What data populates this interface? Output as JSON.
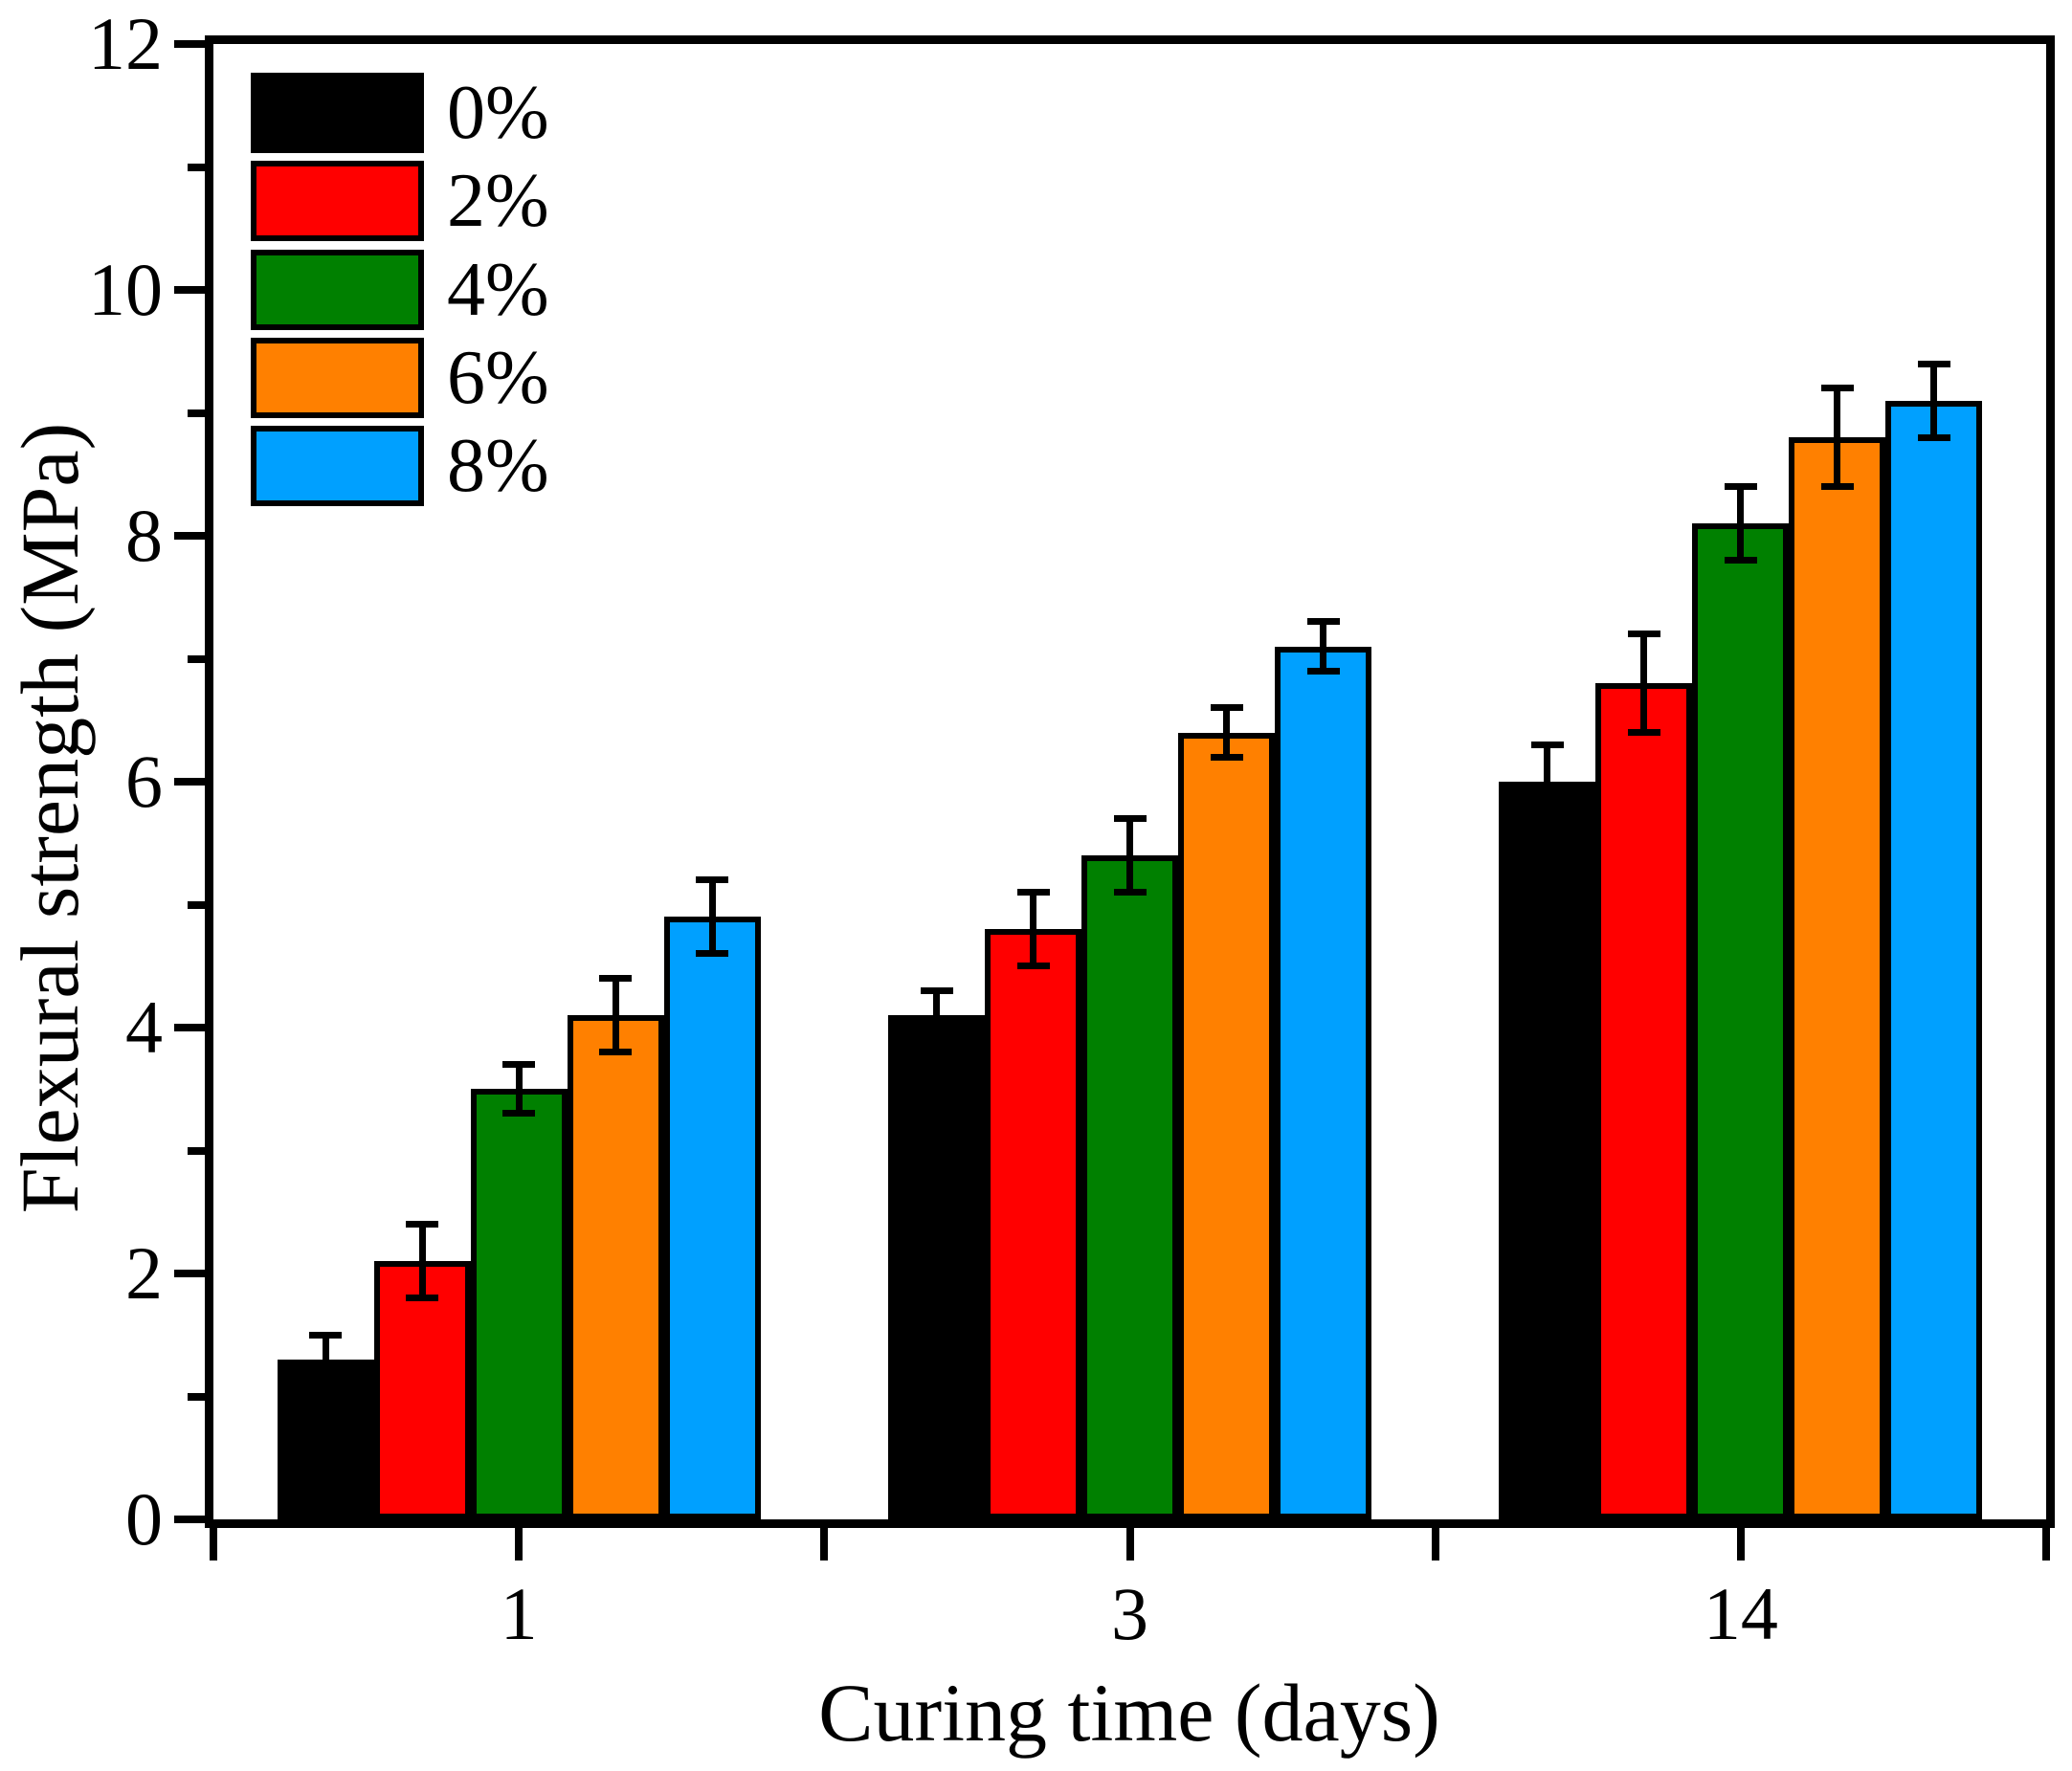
{
  "axes": {
    "y": {
      "label": "Flexural strength (MPa)",
      "min": 0,
      "max": 12,
      "major_step": 2,
      "minor_step": 1,
      "major_tick_labels": [
        "0",
        "2",
        "4",
        "6",
        "8",
        "10",
        "12"
      ]
    },
    "x": {
      "label": "Curing time (days)",
      "tick_labels": [
        "1",
        "3",
        "14"
      ]
    }
  },
  "chart_data": {
    "type": "bar",
    "title": "",
    "categories": [
      "1",
      "3",
      "14"
    ],
    "xlabel": "Curing time (days)",
    "ylabel": "Flexural strength (MPa)",
    "ylim": [
      0,
      12
    ],
    "y_major_step": 2,
    "y_minor_step": 1,
    "grid": false,
    "error_bars": true,
    "legend_position": "top-left-inside",
    "frame": "full-box",
    "series": [
      {
        "name": "0%",
        "color": "#000000",
        "values": [
          1.3,
          4.1,
          6.0
        ],
        "errors": [
          0.2,
          0.2,
          0.3
        ]
      },
      {
        "name": "2%",
        "color": "#FF0000",
        "values": [
          2.1,
          4.8,
          6.8
        ],
        "errors": [
          0.3,
          0.3,
          0.4
        ]
      },
      {
        "name": "4%",
        "color": "#008000",
        "values": [
          3.5,
          5.4,
          8.1
        ],
        "errors": [
          0.2,
          0.3,
          0.3
        ]
      },
      {
        "name": "6%",
        "color": "#FF8000",
        "values": [
          4.1,
          6.4,
          8.8
        ],
        "errors": [
          0.3,
          0.2,
          0.4
        ]
      },
      {
        "name": "8%",
        "color": "#00A0FF",
        "values": [
          4.9,
          7.1,
          9.1
        ],
        "errors": [
          0.3,
          0.2,
          0.3
        ]
      }
    ]
  }
}
